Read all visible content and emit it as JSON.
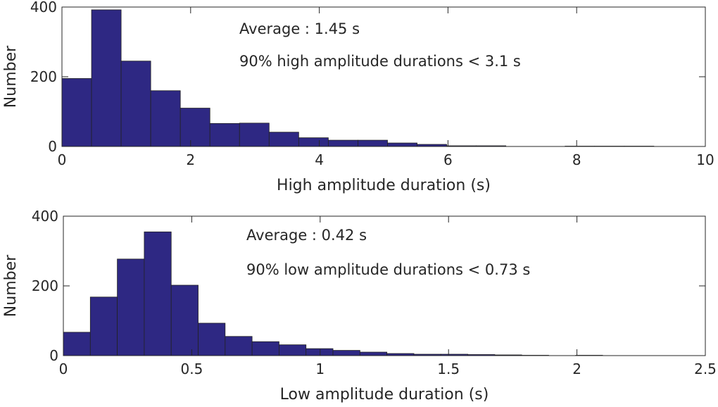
{
  "chart_data": [
    {
      "type": "bar",
      "xlabel": "High amplitude duration (s)",
      "ylabel": "Number",
      "xlim": [
        0,
        10
      ],
      "ylim": [
        0,
        400
      ],
      "xticks": [
        "0",
        "2",
        "4",
        "6",
        "8",
        "10"
      ],
      "yticks": [
        "0",
        "200",
        "400"
      ],
      "bin_width": 0.46,
      "bin_start": 0,
      "values": [
        195,
        392,
        245,
        160,
        110,
        66,
        67,
        41,
        25,
        18,
        18,
        10,
        6,
        2,
        2,
        0,
        0,
        1,
        1,
        1
      ],
      "annotations": [
        "Average : 1.45 s",
        "90% high amplitude durations < 3.1 s"
      ],
      "bar_color": "#2e2883",
      "grid": false
    },
    {
      "type": "bar",
      "xlabel": "Low amplitude duration (s)",
      "ylabel": "Number",
      "xlim": [
        0,
        2.5
      ],
      "ylim": [
        0,
        400
      ],
      "xticks": [
        "0",
        "0.5",
        "1",
        "1.5",
        "2",
        "2.5"
      ],
      "yticks": [
        "0",
        "200",
        "400"
      ],
      "bin_width": 0.105,
      "bin_start": 0,
      "values": [
        67,
        168,
        277,
        355,
        202,
        93,
        55,
        40,
        31,
        20,
        15,
        10,
        6,
        4,
        4,
        3,
        2,
        1,
        0,
        1
      ],
      "annotations": [
        "Average : 0.42 s",
        "90% low amplitude durations < 0.73 s"
      ],
      "bar_color": "#2e2883",
      "grid": false
    }
  ]
}
